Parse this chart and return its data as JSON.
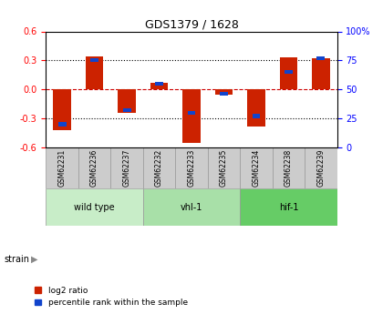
{
  "title": "GDS1379 / 1628",
  "samples": [
    "GSM62231",
    "GSM62236",
    "GSM62237",
    "GSM62232",
    "GSM62233",
    "GSM62235",
    "GSM62234",
    "GSM62238",
    "GSM62239"
  ],
  "log2_ratio": [
    -0.42,
    0.34,
    -0.24,
    0.07,
    -0.55,
    -0.05,
    -0.38,
    0.33,
    0.32
  ],
  "percentile_rank": [
    20,
    75,
    32,
    55,
    30,
    46,
    27,
    65,
    77
  ],
  "groups": [
    {
      "label": "wild type",
      "start": 0,
      "end": 3,
      "color": "#c8edc8"
    },
    {
      "label": "vhl-1",
      "start": 3,
      "end": 6,
      "color": "#a8e0a8"
    },
    {
      "label": "hif-1",
      "start": 6,
      "end": 9,
      "color": "#66cc66"
    }
  ],
  "ylim_left": [
    -0.6,
    0.6
  ],
  "ylim_right": [
    0,
    100
  ],
  "yticks_left": [
    -0.6,
    -0.3,
    0.0,
    0.3,
    0.6
  ],
  "yticks_right": [
    0,
    25,
    50,
    75,
    100
  ],
  "bar_color": "#cc2200",
  "pct_color": "#1144cc",
  "zero_line_color": "#cc0000",
  "bg_color": "#ffffff",
  "sample_box_color": "#cccccc"
}
